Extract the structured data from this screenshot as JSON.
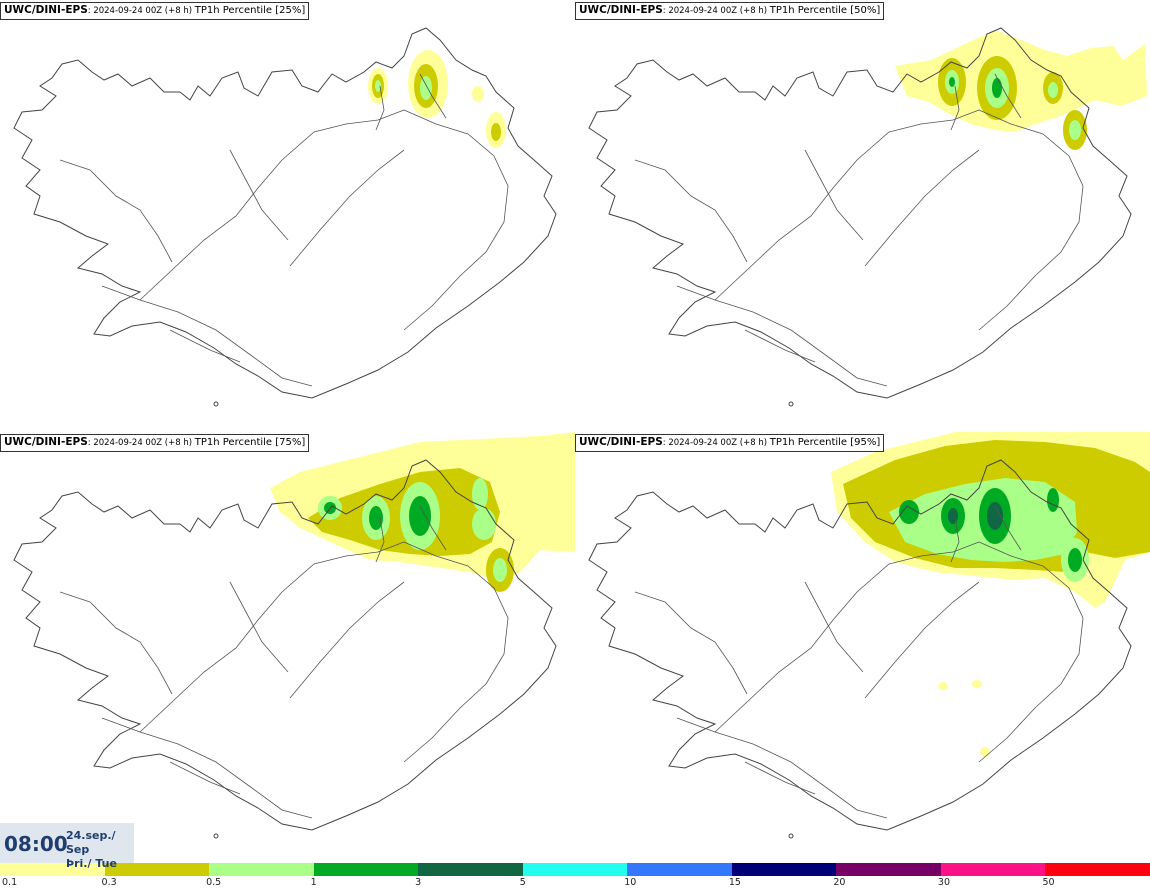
{
  "panels": [
    {
      "model": "UWC/DINI-EPS",
      "run": ": 2024-09-24 00Z (+8 h) ",
      "field": "TP1h Percentile [25%]"
    },
    {
      "model": "UWC/DINI-EPS",
      "run": ": 2024-09-24 00Z (+8 h) ",
      "field": "TP1h Percentile [50%]"
    },
    {
      "model": "UWC/DINI-EPS",
      "run": ": 2024-09-24 00Z (+8 h) ",
      "field": "TP1h Percentile [75%]"
    },
    {
      "model": "UWC/DINI-EPS",
      "run": ": 2024-09-24 00Z (+8 h) ",
      "field": "TP1h Percentile [95%]"
    }
  ],
  "valid_time": {
    "time": "08:00",
    "date_line1": "24.sep./ Sep",
    "date_line2": "Þri./ Tue"
  },
  "legend": {
    "labels": [
      "0.1",
      "0.3",
      "0.5",
      "1",
      "3",
      "5",
      "10",
      "15",
      "20",
      "30",
      "50"
    ],
    "colors": [
      "#ffff99",
      "#cccc00",
      "#aaff88",
      "#00aa22",
      "#116644",
      "#22ffee",
      "#3377ff",
      "#000077",
      "#770066",
      "#ff1188",
      "#ff0011"
    ]
  },
  "colors": {
    "coast": "#444444",
    "roads": "#555555",
    "timebox_bg": "#dfe6ee",
    "time_text": "#1f3e6e"
  }
}
